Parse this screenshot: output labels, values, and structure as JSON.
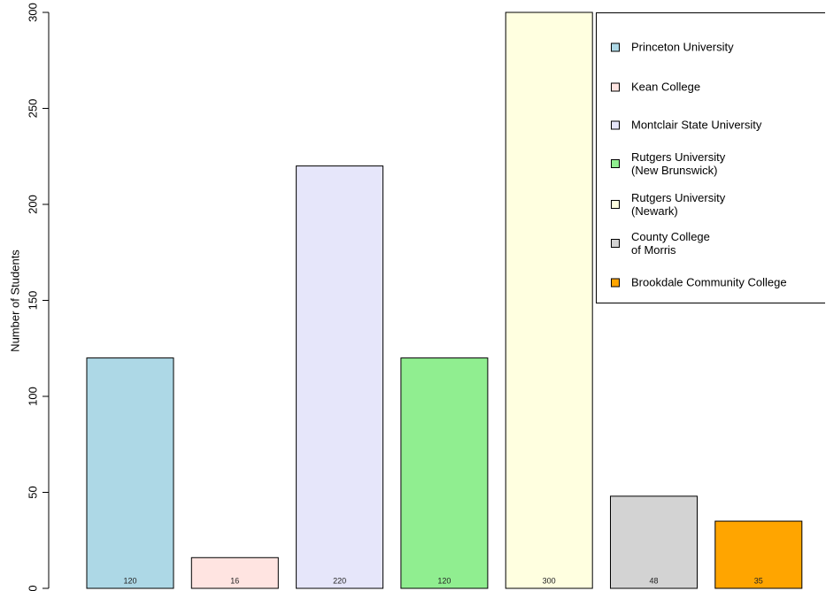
{
  "chart_data": {
    "type": "bar",
    "y_label": "Number of Students",
    "categories": [
      "Princeton University",
      "Kean College",
      "Montclair State University",
      "Rutgers University\n(New Brunswick)",
      "Rutgers University\n(Newark)",
      "County College\nof Morris",
      "Brookdale Community College"
    ],
    "values": [
      120,
      16,
      220,
      120,
      300,
      48,
      35
    ],
    "colors": [
      "#add8e6",
      "#ffe4e1",
      "#e6e6fa",
      "#90ee90",
      "#ffffe0",
      "#d3d3d3",
      "#ffa500"
    ],
    "ylim": [
      0,
      300
    ],
    "yticks": [
      0,
      50,
      100,
      150,
      200,
      250,
      300
    ],
    "legend": "top-right"
  }
}
